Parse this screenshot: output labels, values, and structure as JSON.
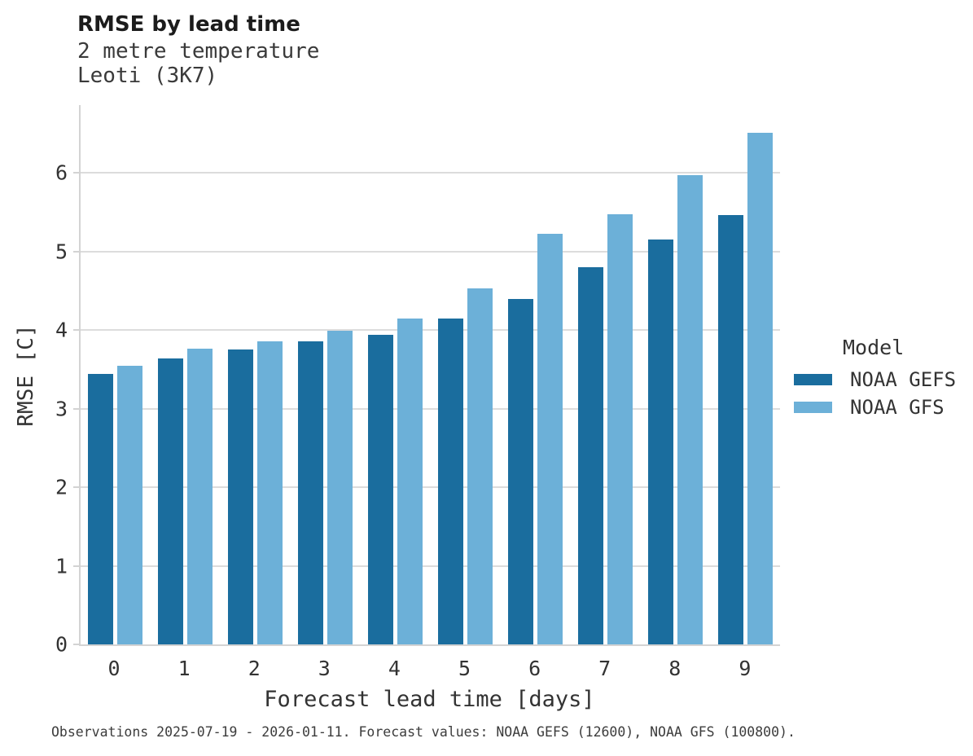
{
  "header": {
    "title": "RMSE by lead time",
    "subtitle_line1": "2 metre temperature",
    "subtitle_line2": "Leoti (3K7)"
  },
  "axes": {
    "x_title": "Forecast lead time [days]",
    "y_title": "RMSE [C]",
    "x_tick_labels": [
      "0",
      "1",
      "2",
      "3",
      "4",
      "5",
      "6",
      "7",
      "8",
      "9"
    ],
    "y_tick_labels": [
      "0",
      "1",
      "2",
      "3",
      "4",
      "5",
      "6"
    ]
  },
  "legend": {
    "title": "Model",
    "items": [
      {
        "label": "NOAA GEFS",
        "color": "#1A6D9E"
      },
      {
        "label": "NOAA GFS",
        "color": "#6CB0D8"
      }
    ]
  },
  "caption": "Observations 2025-07-19 - 2026-01-11. Forecast values: NOAA GEFS (12600), NOAA GFS (100800).",
  "colors": {
    "bar_dark": "#1A6D9E",
    "bar_light": "#6CB0D8",
    "gridline": "#dcdcdc",
    "axis": "#d3d3d3"
  },
  "chart_data": {
    "type": "bar",
    "title": "RMSE by lead time",
    "subtitle": [
      "2 metre temperature",
      "Leoti (3K7)"
    ],
    "categories": [
      0,
      1,
      2,
      3,
      4,
      5,
      6,
      7,
      8,
      9
    ],
    "series": [
      {
        "name": "NOAA GEFS",
        "color": "#1A6D9E",
        "values": [
          3.44,
          3.64,
          3.75,
          3.85,
          3.94,
          4.15,
          4.39,
          4.8,
          5.15,
          5.46
        ]
      },
      {
        "name": "NOAA GFS",
        "color": "#6CB0D8",
        "values": [
          3.54,
          3.76,
          3.86,
          3.99,
          4.14,
          4.53,
          5.22,
          5.47,
          5.97,
          6.51
        ]
      }
    ],
    "xlabel": "Forecast lead time [days]",
    "ylabel": "RMSE [C]",
    "ylim": [
      0,
      6.86
    ],
    "yticks": [
      0,
      1,
      2,
      3,
      4,
      5,
      6
    ],
    "grid": "horizontal",
    "legend_title": "Model",
    "legend_position": "right",
    "footnote": "Observations 2025-07-19 - 2026-01-11. Forecast values: NOAA GEFS (12600), NOAA GFS (100800)."
  }
}
